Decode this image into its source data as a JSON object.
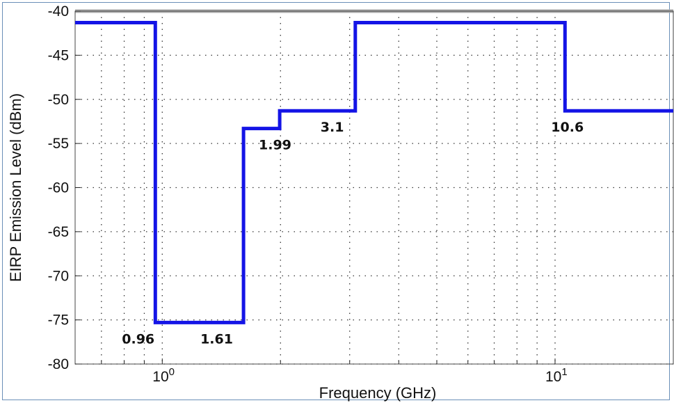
{
  "chart_data": {
    "type": "line",
    "title": "",
    "xlabel": "Frequency (GHz)",
    "ylabel": "EIRP Emission Level (dBm)",
    "xscale": "log",
    "xlim": [
      0.6,
      20
    ],
    "ylim": [
      -80,
      -40
    ],
    "grid": true,
    "yticks": [
      -40,
      -45,
      -50,
      -55,
      -60,
      -65,
      -70,
      -75,
      -80
    ],
    "ytick_labels": [
      "-40",
      "-45",
      "-50",
      "-55",
      "-60",
      "-65",
      "-70",
      "-75",
      "-80"
    ],
    "xticks": [
      {
        "value": 1,
        "base": "10",
        "exp": "0"
      },
      {
        "value": 10,
        "base": "10",
        "exp": "1"
      }
    ],
    "series": [
      {
        "color": "#1414e6",
        "step_points": [
          [
            0.6,
            -41.3
          ],
          [
            0.96,
            -41.3
          ],
          [
            0.96,
            -75.3
          ],
          [
            1.61,
            -75.3
          ],
          [
            1.61,
            -53.3
          ],
          [
            1.99,
            -53.3
          ],
          [
            1.99,
            -51.3
          ],
          [
            3.1,
            -51.3
          ],
          [
            3.1,
            -41.3
          ],
          [
            10.6,
            -41.3
          ],
          [
            10.6,
            -51.3
          ],
          [
            20,
            -51.3
          ]
        ]
      }
    ],
    "annotations": [
      {
        "text": "0.96",
        "x": 0.96,
        "y": -75.3
      },
      {
        "text": "1.61",
        "x": 1.61,
        "y": -75.3
      },
      {
        "text": "1.99",
        "x": 1.99,
        "y": -53.3
      },
      {
        "text": "3.1",
        "x": 3.1,
        "y": -51.3
      },
      {
        "text": "10.6",
        "x": 10.6,
        "y": -51.3
      }
    ]
  }
}
